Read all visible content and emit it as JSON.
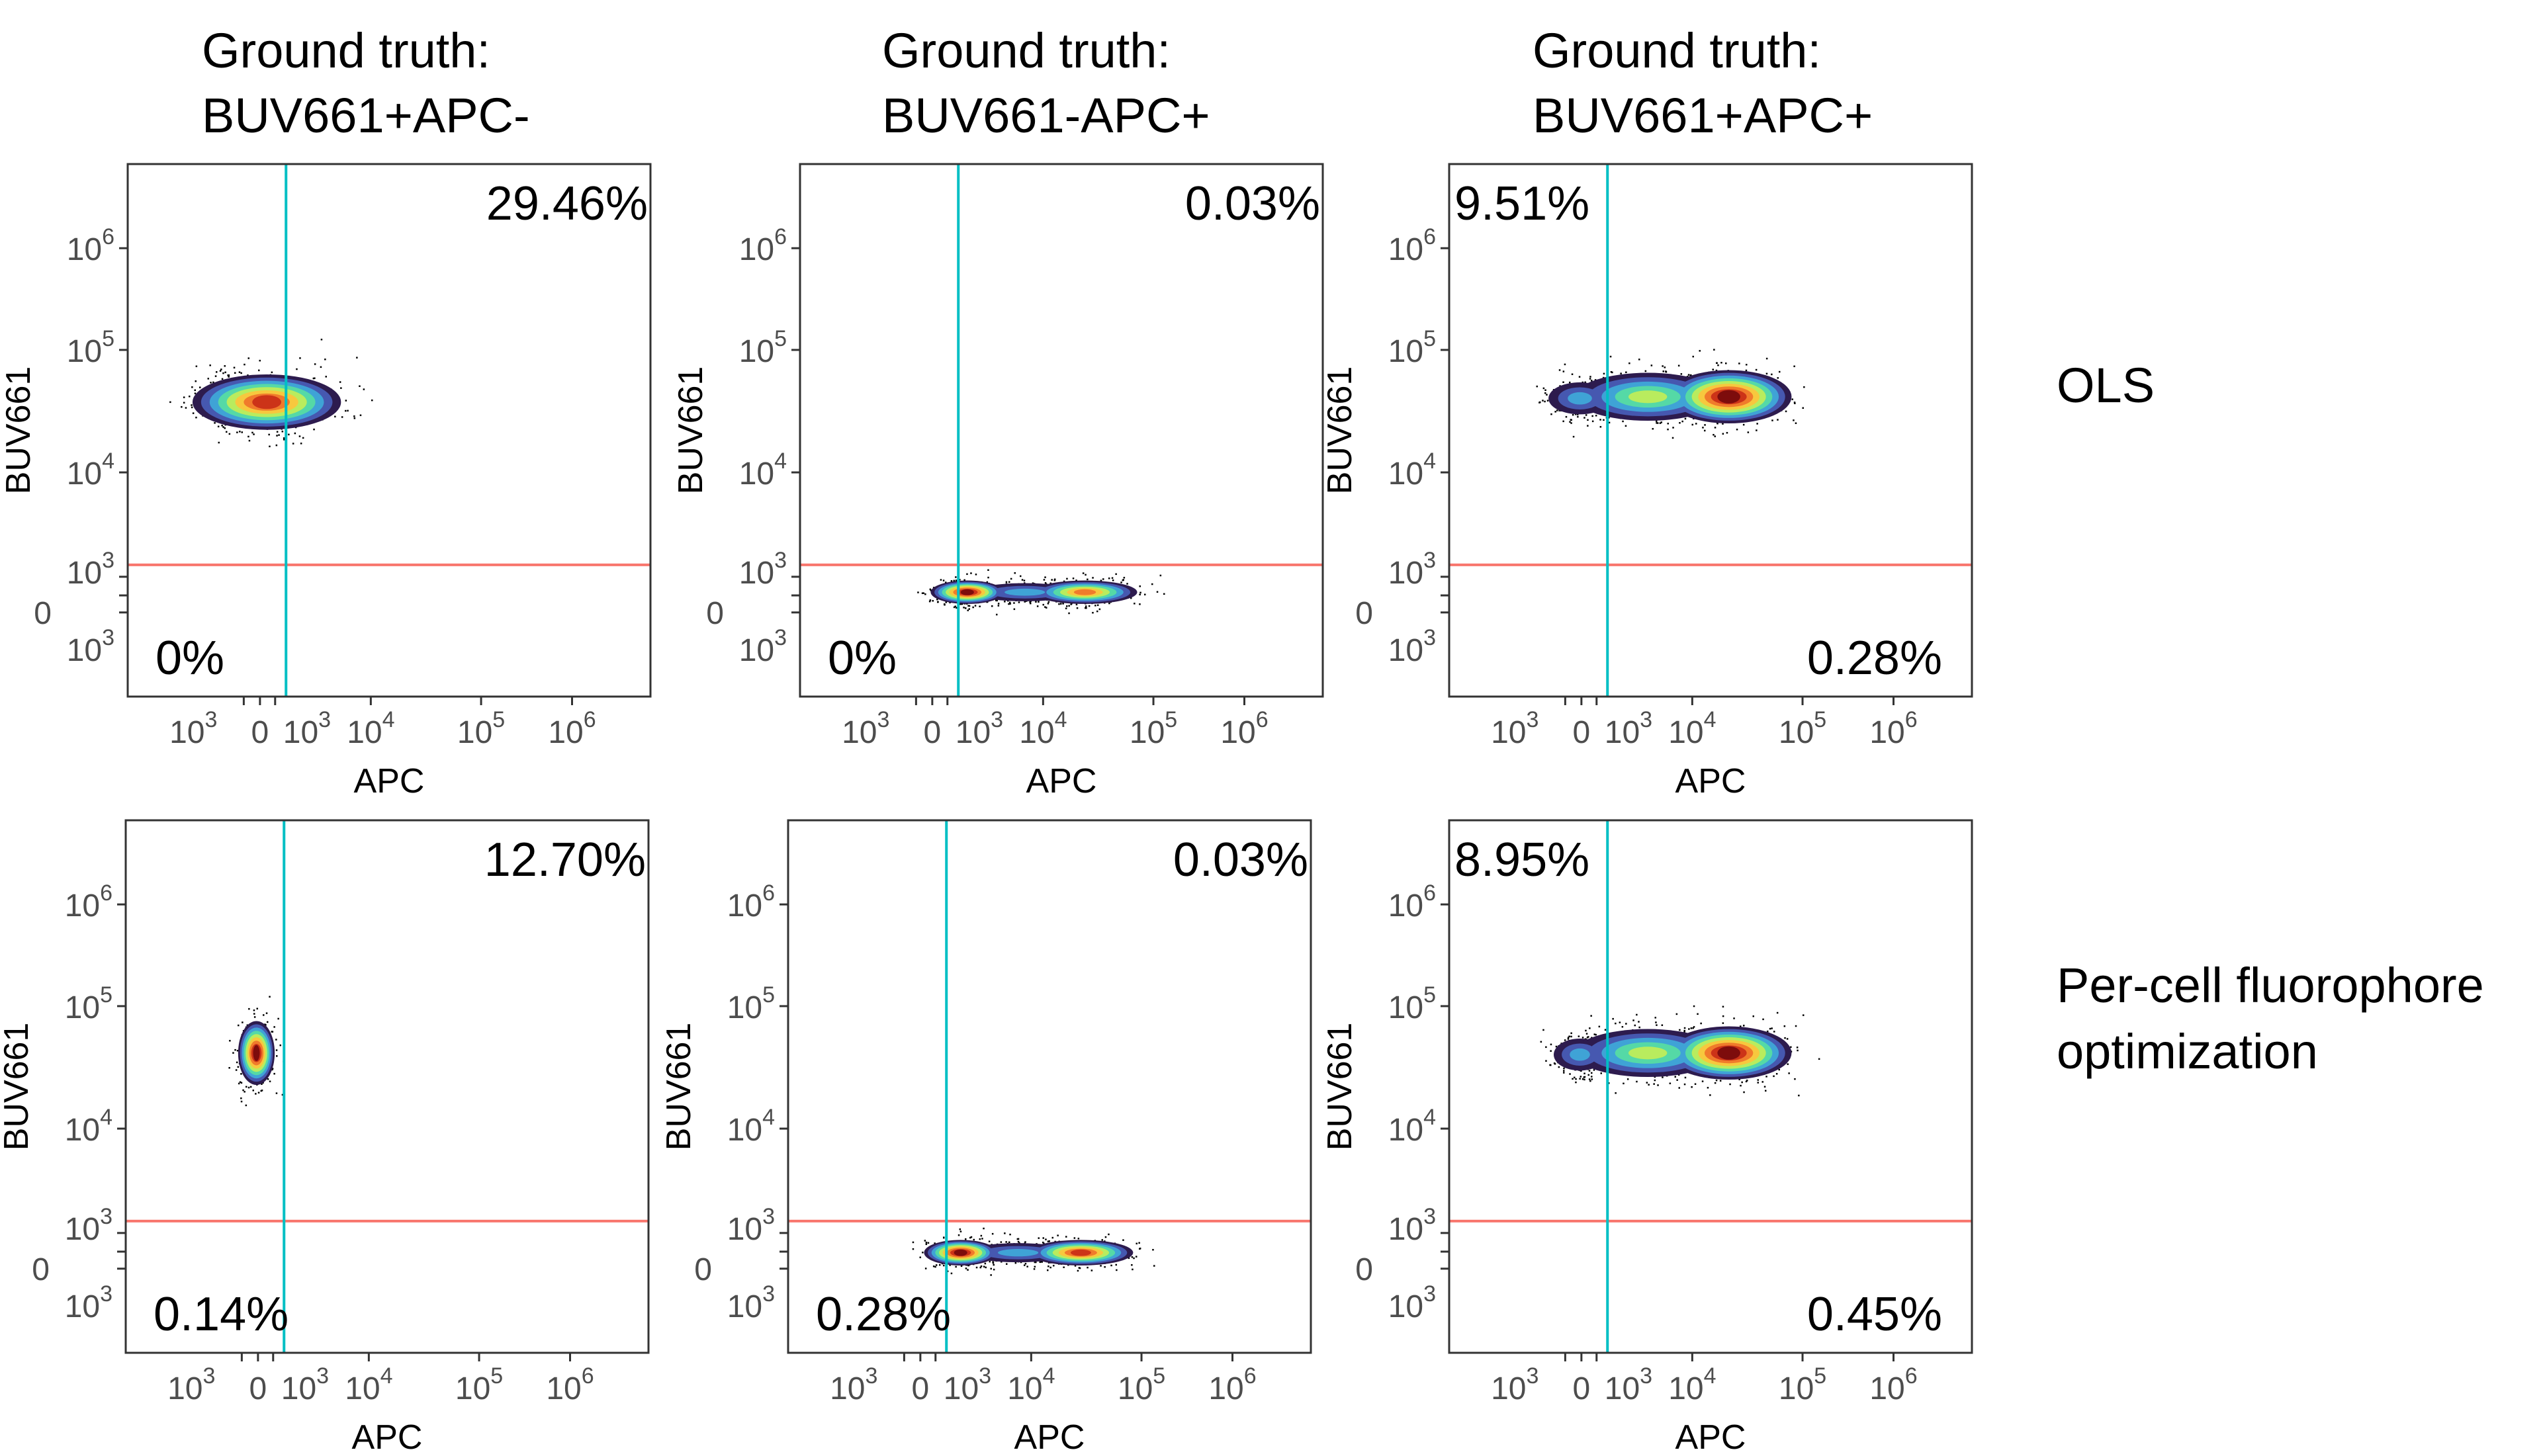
{
  "column_titles": [
    {
      "line1": "Ground truth:",
      "line2": "BUV661+APC-"
    },
    {
      "line1": "Ground truth:",
      "line2": "BUV661-APC+"
    },
    {
      "line1": "Ground truth:",
      "line2": "BUV661+APC+"
    }
  ],
  "row_labels": [
    {
      "line1": "OLS",
      "line2": ""
    },
    {
      "line1": "Per-cell fluorophore",
      "line2": "optimization"
    }
  ],
  "colors": {
    "apc_gate_line": "#00bfc4",
    "buv661_gate_line": "#f8766d",
    "density_palette": [
      "#2d1b4e",
      "#4658b0",
      "#3fa3d6",
      "#55d9a6",
      "#b9ec5e",
      "#f7c83e",
      "#f07b2b",
      "#cc3318",
      "#7d0c0c"
    ],
    "events": "#000000"
  },
  "chart_data": [
    {
      "type": "scatter",
      "row": 0,
      "col": 0,
      "xlabel": "APC",
      "ylabel": "BUV661",
      "x_scale": "biexponential",
      "y_scale": "biexponential",
      "grid": false,
      "quadrants": {
        "upper_right": "29.46%",
        "lower_left": "0%"
      },
      "population": "single cluster near APC 0–10^3, BUV661 ~4×10^4"
    },
    {
      "type": "scatter",
      "row": 0,
      "col": 1,
      "xlabel": "APC",
      "ylabel": "BUV661",
      "x_scale": "biexponential",
      "y_scale": "biexponential",
      "grid": false,
      "quadrants": {
        "upper_right": "0.03%",
        "lower_left": "0%"
      },
      "population": "elongated cluster APC ~10^3–5×10^4, BUV661 ~0"
    },
    {
      "type": "scatter",
      "row": 0,
      "col": 2,
      "xlabel": "APC",
      "ylabel": "BUV661",
      "x_scale": "biexponential",
      "y_scale": "biexponential",
      "grid": false,
      "quadrants": {
        "upper_left": "9.51%",
        "lower_right": "0.28%"
      },
      "population": "elongated cluster APC ~10^3–5×10^4, BUV661 ~4×10^4"
    },
    {
      "type": "scatter",
      "row": 1,
      "col": 0,
      "xlabel": "APC",
      "ylabel": "BUV661",
      "x_scale": "biexponential",
      "y_scale": "biexponential",
      "grid": false,
      "quadrants": {
        "upper_right": "12.70%",
        "lower_left": "0.14%"
      },
      "population": "compact cluster near APC ~0, BUV661 ~4×10^4"
    },
    {
      "type": "scatter",
      "row": 1,
      "col": 1,
      "xlabel": "APC",
      "ylabel": "BUV661",
      "x_scale": "biexponential",
      "y_scale": "biexponential",
      "grid": false,
      "quadrants": {
        "upper_right": "0.03%",
        "lower_left": "0.28%"
      },
      "population": "elongated cluster APC ~10^3–5×10^4, BUV661 ~0"
    },
    {
      "type": "scatter",
      "row": 1,
      "col": 2,
      "xlabel": "APC",
      "ylabel": "BUV661",
      "x_scale": "biexponential",
      "y_scale": "biexponential",
      "grid": false,
      "quadrants": {
        "upper_left": "8.95%",
        "lower_right": "0.45%"
      },
      "population": "elongated cluster APC ~10^3–5×10^4, BUV661 ~4×10^4"
    }
  ],
  "axes": {
    "x_ticks": [
      {
        "value": -1000,
        "base": "10",
        "exp": "3"
      },
      {
        "value": 0,
        "base": "0",
        "exp": ""
      },
      {
        "value": 1000,
        "base": "10",
        "exp": "3"
      },
      {
        "value": 10000,
        "base": "10",
        "exp": "4"
      },
      {
        "value": 100000,
        "base": "10",
        "exp": "5"
      },
      {
        "value": 1000000,
        "base": "10",
        "exp": "6"
      }
    ],
    "y_ticks": [
      {
        "value": -1000,
        "base": "10",
        "exp": "3"
      },
      {
        "value": 0,
        "base": "0",
        "exp": ""
      },
      {
        "value": 1000,
        "base": "10",
        "exp": "3"
      },
      {
        "value": 10000,
        "base": "10",
        "exp": "4"
      },
      {
        "value": 100000,
        "base": "10",
        "exp": "5"
      },
      {
        "value": 1000000,
        "base": "10",
        "exp": "6"
      }
    ],
    "apc_threshold": 1300,
    "buv661_threshold": 1300
  }
}
